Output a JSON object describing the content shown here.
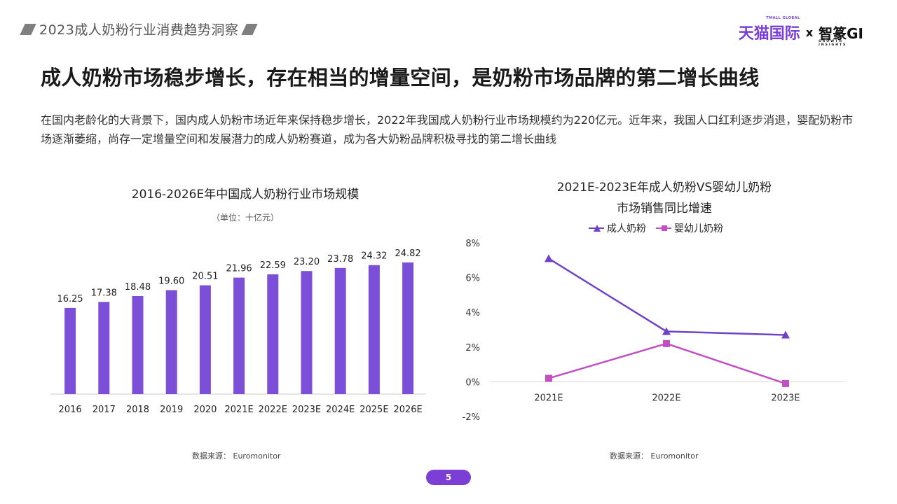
{
  "header": {
    "title": "2023成人奶粉行业消费趋势洞察",
    "logo_tmall": "天猫国际",
    "logo_tmall_sub": "TMALL GLOBAL",
    "logo_x": "x",
    "logo_gi": "智篆GI",
    "logo_gi_sub": "GROWTH INSIGHTS"
  },
  "main": {
    "title": "成人奶粉市场稳步增长，存在相当的增量空间，是奶粉市场品牌的第二增长曲线",
    "intro": "在国内老龄化的大背景下，国内成人奶粉市场近年来保持稳步增长，2022年我国成人奶粉行业市场规模约为220亿元。近年来，我国人口红利逐步消退，婴配奶粉市场逐渐萎缩，尚存一定增量空间和发展潜力的成人奶粉赛道，成为各大奶粉品牌积极寻找的第二增长曲线"
  },
  "chart_data": [
    {
      "type": "bar",
      "title": "2016-2026E年中国成人奶粉行业市场规模",
      "subtitle": "（单位：十亿元）",
      "categories": [
        "2016",
        "2017",
        "2018",
        "2019",
        "2020",
        "2021E",
        "2022E",
        "2023E",
        "2024E",
        "2025E",
        "2026E"
      ],
      "values": [
        16.25,
        17.38,
        18.48,
        19.6,
        20.51,
        21.96,
        22.59,
        23.2,
        23.78,
        24.32,
        24.82
      ],
      "value_labels": [
        "16.25",
        "17.38",
        "18.48",
        "19.60",
        "20.51",
        "21.96",
        "22.59",
        "23.20",
        "23.78",
        "24.32",
        "24.82"
      ],
      "color": "#7b4fd8",
      "ylim": [
        0,
        28
      ],
      "source": "数据来源： Euromonitor"
    },
    {
      "type": "line",
      "title_line1": "2021E-2023E年成人奶粉VS婴幼儿奶粉",
      "title_line2": "市场销售同比增速",
      "categories": [
        "2021E",
        "2022E",
        "2023E"
      ],
      "series": [
        {
          "name": "成人奶粉",
          "values": [
            7.1,
            2.9,
            2.7
          ],
          "color": "#6f42c8",
          "marker": "triangle"
        },
        {
          "name": "婴幼儿奶粉",
          "values": [
            0.2,
            2.2,
            -0.1
          ],
          "color": "#c24fc2",
          "marker": "square"
        }
      ],
      "yticks": [
        "8%",
        "6%",
        "4%",
        "2%",
        "0%",
        "-2%"
      ],
      "ylim": [
        -2,
        8
      ],
      "source": "数据来源： Euromonitor"
    }
  ],
  "footer": {
    "page": "5"
  }
}
